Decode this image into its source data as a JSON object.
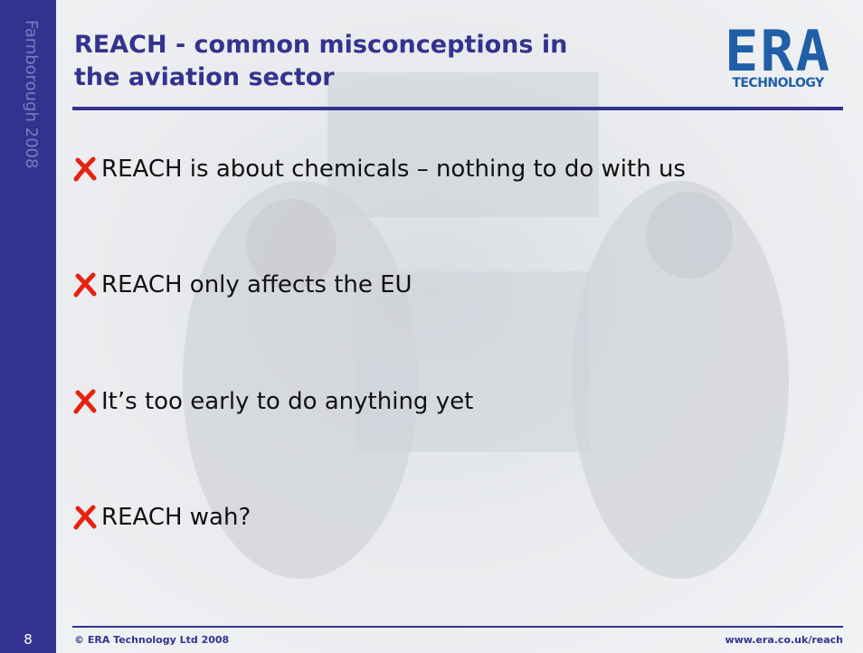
{
  "sidebar": {
    "event": "Farnborough 2008",
    "page_number": "8"
  },
  "header": {
    "title_lines": [
      "REACH - common misconceptions in",
      "the aviation sector"
    ],
    "logo": {
      "name": "ERA",
      "tagline": "TECHNOLOGY"
    }
  },
  "bullets": [
    "REACH is about chemicals – nothing to do with us",
    "REACH only affects the EU",
    "It’s too early to do anything yet",
    "REACH wah?"
  ],
  "footer": {
    "copyright": "© ERA Technology Ltd 2008",
    "url": "www.era.co.uk/reach"
  }
}
